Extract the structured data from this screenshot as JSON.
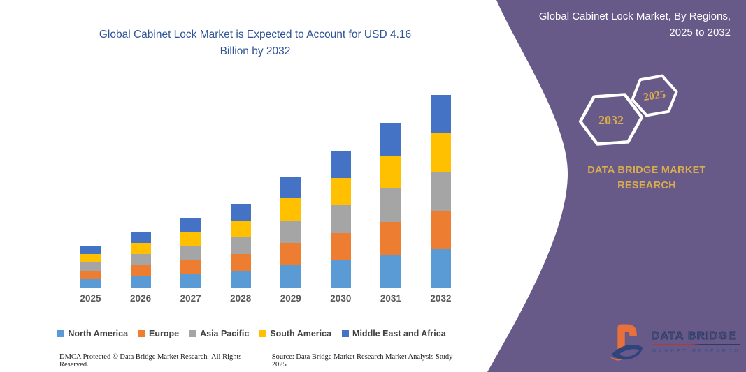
{
  "page": {
    "background": "#ffffff"
  },
  "chart_section": {
    "title": "Global Cabinet Lock Market is Expected to Account for USD 4.16 Billion by 2032",
    "footer": {
      "dmca": "DMCA Protected © Data Bridge Market Research-  All Rights Reserved.",
      "source": "Source: Data Bridge Market Research  Market Analysis Study 2025"
    }
  },
  "chart_data": {
    "type": "bar",
    "stacked": true,
    "unit": "USD Billion",
    "title": "Global Cabinet Lock Market, By Regions, 2025 to 2032",
    "categories": [
      "2025",
      "2026",
      "2027",
      "2028",
      "2029",
      "2030",
      "2031",
      "2032"
    ],
    "series": [
      {
        "name": "North America",
        "color": "#5B9BD5",
        "values": [
          0.18,
          0.24,
          0.3,
          0.36,
          0.48,
          0.59,
          0.71,
          0.83
        ]
      },
      {
        "name": "Europe",
        "color": "#ED7D31",
        "values": [
          0.18,
          0.24,
          0.3,
          0.36,
          0.48,
          0.59,
          0.71,
          0.83
        ]
      },
      {
        "name": "Asia Pacific",
        "color": "#A5A5A5",
        "values": [
          0.18,
          0.24,
          0.3,
          0.36,
          0.48,
          0.59,
          0.71,
          0.83
        ]
      },
      {
        "name": "South America",
        "color": "#FFC000",
        "values": [
          0.18,
          0.24,
          0.3,
          0.36,
          0.48,
          0.59,
          0.71,
          0.83
        ]
      },
      {
        "name": "Middle East and Africa",
        "color": "#4472C4",
        "values": [
          0.18,
          0.24,
          0.3,
          0.36,
          0.48,
          0.59,
          0.71,
          0.83
        ]
      }
    ],
    "totals": [
      0.89,
      1.18,
      1.48,
      1.79,
      2.39,
      2.97,
      3.57,
      4.16
    ],
    "ylim": [
      0,
      4.4
    ],
    "y_axis_visible": false,
    "grid": false,
    "legend_position": "bottom"
  },
  "panel": {
    "title": "Global Cabinet Lock Market, By Regions, 2025 to 2032",
    "hexagons": [
      {
        "label": "2032"
      },
      {
        "label": "2025"
      }
    ],
    "brand": "DATA BRIDGE MARKET RESEARCH",
    "logo": {
      "title": "DATA BRIDGE",
      "subtitle": "MARKET RESEARCH"
    },
    "colors": {
      "panel_purple": "#675A88",
      "accent_gold": "#D9AC4F",
      "title_blue": "#2F5496"
    }
  }
}
